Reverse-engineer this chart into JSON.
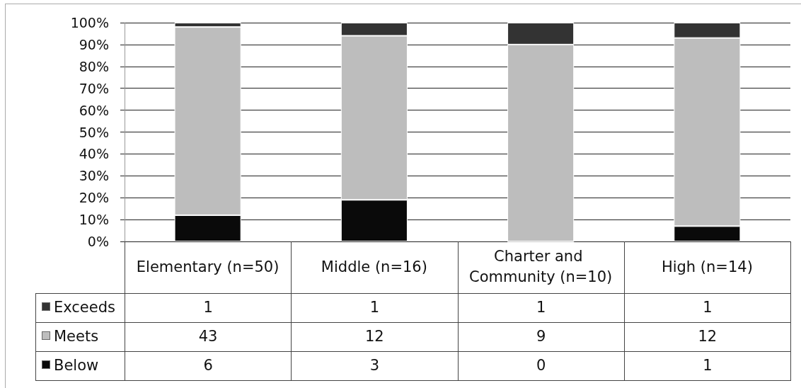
{
  "chart_data": {
    "type": "bar",
    "categories": [
      "Elementary (n=50)",
      "Middle (n=16)",
      "Charter and Community (n=10)",
      "High (n=14)"
    ],
    "series": [
      {
        "name": "Below",
        "color": "#0a0a0a",
        "values": [
          12,
          19,
          0,
          7
        ]
      },
      {
        "name": "Meets",
        "color": "#bdbdbd",
        "values": [
          86,
          75,
          90,
          86
        ]
      },
      {
        "name": "Exceeds",
        "color": "#333333",
        "values": [
          2,
          6,
          10,
          7
        ]
      }
    ],
    "stacked": true,
    "ylim": [
      0,
      100
    ],
    "yticks": [
      {
        "value": 0,
        "label": "0%"
      },
      {
        "value": 10,
        "label": "10%"
      },
      {
        "value": 20,
        "label": "20%"
      },
      {
        "value": 30,
        "label": "30%"
      },
      {
        "value": 40,
        "label": "40%"
      },
      {
        "value": 50,
        "label": "50%"
      },
      {
        "value": 60,
        "label": "60%"
      },
      {
        "value": 70,
        "label": "70%"
      },
      {
        "value": 80,
        "label": "80%"
      },
      {
        "value": 90,
        "label": "90%"
      },
      {
        "value": 100,
        "label": "100%"
      }
    ],
    "grid": "y",
    "legend": "bottom left",
    "annotations": [
      "1",
      "1",
      "1",
      "1",
      "43",
      "12",
      "9",
      "12",
      "6",
      "3",
      "0",
      "1"
    ]
  }
}
